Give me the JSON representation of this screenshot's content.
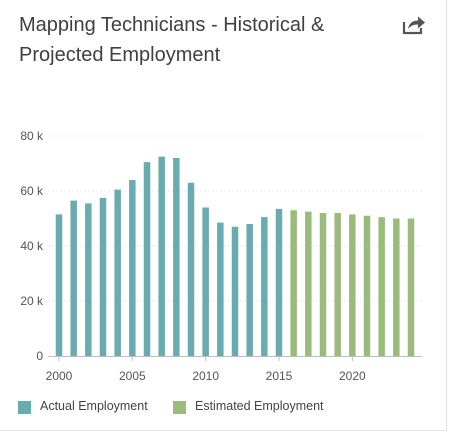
{
  "title": "Mapping Technicians - Historical & Projected Employment",
  "share_icon": "share-arrow-icon",
  "colors": {
    "actual": "#6aabaf",
    "estimated": "#9bbb7c",
    "grid": "#e8e8e8",
    "axis": "#bfbfbf"
  },
  "legend": {
    "actual_label": "Actual Employment",
    "estimated_label": "Estimated Employment"
  },
  "chart_data": {
    "type": "bar",
    "x": [
      2000,
      2001,
      2002,
      2003,
      2004,
      2005,
      2006,
      2007,
      2008,
      2009,
      2010,
      2011,
      2012,
      2013,
      2014,
      2015,
      2016,
      2017,
      2018,
      2019,
      2020,
      2021,
      2022,
      2023,
      2024
    ],
    "series": [
      {
        "name": "Actual Employment",
        "x": [
          2000,
          2001,
          2002,
          2003,
          2004,
          2005,
          2006,
          2007,
          2008,
          2009,
          2010,
          2011,
          2012,
          2013,
          2014,
          2015
        ],
        "values": [
          51500,
          56500,
          55500,
          57500,
          60500,
          64000,
          70500,
          72500,
          72000,
          63000,
          54000,
          48500,
          47000,
          48000,
          50500,
          53500
        ]
      },
      {
        "name": "Estimated Employment",
        "x": [
          2016,
          2017,
          2018,
          2019,
          2020,
          2021,
          2022,
          2023,
          2024
        ],
        "values": [
          53000,
          52500,
          52000,
          52000,
          51500,
          51000,
          50500,
          50000,
          50000
        ]
      }
    ],
    "xticks": [
      2000,
      2005,
      2010,
      2015,
      2020
    ],
    "xtick_labels": [
      "2000",
      "2005",
      "2010",
      "2015",
      "2020"
    ],
    "yticks": [
      0,
      20000,
      40000,
      60000,
      80000
    ],
    "ytick_labels": [
      "0",
      "20 k",
      "40 k",
      "60 k",
      "80 k"
    ],
    "ylim": [
      0,
      80000
    ],
    "grid": true,
    "legend_position": "bottom-left"
  }
}
